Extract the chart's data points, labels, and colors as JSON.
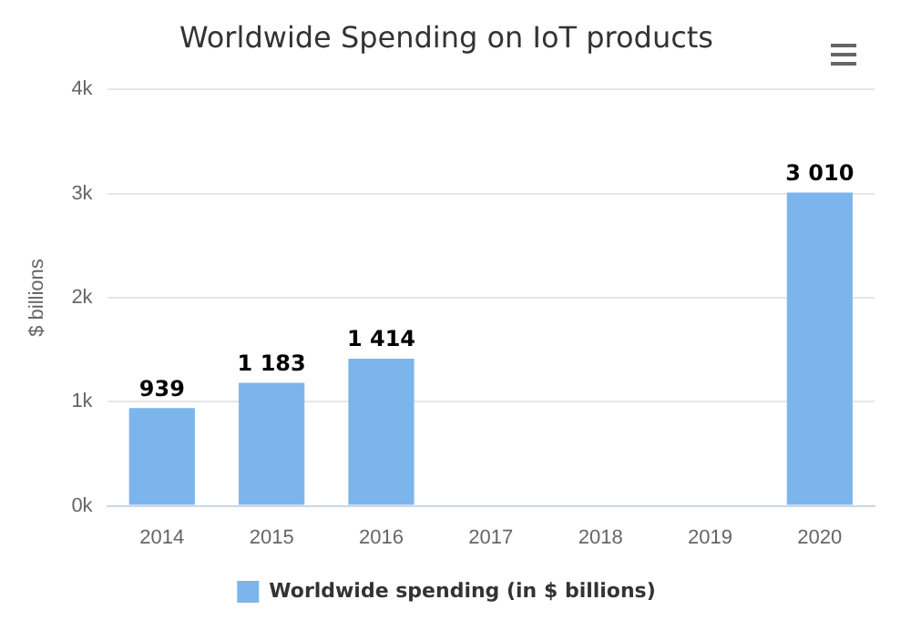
{
  "chart_data": {
    "type": "bar",
    "title": "Worldwide Spending on IoT products",
    "ylabel": "$ billions",
    "categories": [
      "2014",
      "2015",
      "2016",
      "2017",
      "2018",
      "2019",
      "2020"
    ],
    "series": [
      {
        "name": "Worldwide spending (in $ billions)",
        "color": "#7cb5ec",
        "values": [
          939,
          1183,
          1414,
          null,
          null,
          null,
          3010
        ],
        "value_labels": [
          "939",
          "1 183",
          "1 414",
          null,
          null,
          null,
          "3 010"
        ]
      }
    ],
    "ylim": [
      0,
      4000
    ],
    "yticks": [
      {
        "value": 0,
        "label": "0k"
      },
      {
        "value": 1000,
        "label": "1k"
      },
      {
        "value": 2000,
        "label": "2k"
      },
      {
        "value": 3000,
        "label": "3k"
      },
      {
        "value": 4000,
        "label": "4k"
      }
    ],
    "grid": "y",
    "legend": "bottom"
  }
}
